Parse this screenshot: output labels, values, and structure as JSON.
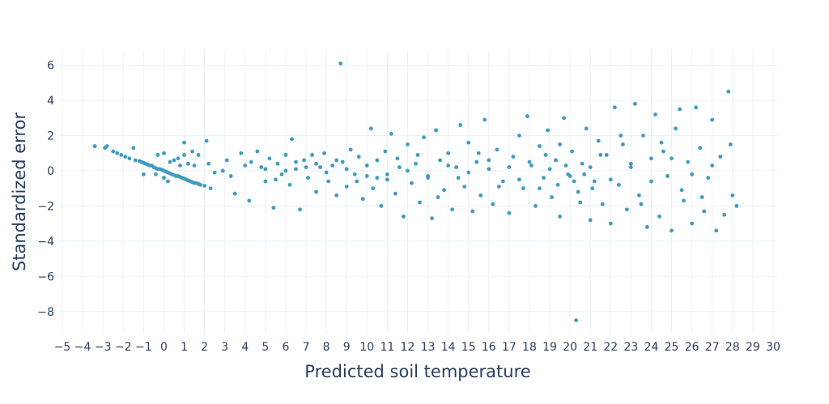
{
  "chart_data": {
    "type": "scatter",
    "title": "",
    "xlabel": "Predicted soil temperature",
    "ylabel": "Standardized error",
    "xlim": [
      -5.2,
      30.2
    ],
    "ylim": [
      -9.3,
      6.9
    ],
    "xticks": [
      -5,
      -4,
      -3,
      -2,
      -1,
      0,
      1,
      2,
      3,
      4,
      5,
      6,
      7,
      8,
      9,
      10,
      11,
      12,
      13,
      14,
      15,
      16,
      17,
      18,
      19,
      20,
      21,
      22,
      23,
      24,
      25,
      26,
      27,
      28,
      29,
      30
    ],
    "yticks": [
      -8,
      -6,
      -4,
      -2,
      0,
      2,
      4,
      6
    ],
    "grid": true,
    "marker_color": "#3f9bbf",
    "series": [
      {
        "name": "points",
        "points": [
          [
            -3.4,
            1.4
          ],
          [
            -2.9,
            1.3
          ],
          [
            -2.8,
            1.4
          ],
          [
            -2.5,
            1.1
          ],
          [
            -2.3,
            1.0
          ],
          [
            -2.1,
            0.9
          ],
          [
            -1.9,
            0.8
          ],
          [
            -1.7,
            0.7
          ],
          [
            -1.5,
            1.3
          ],
          [
            -1.4,
            0.6
          ],
          [
            -1.2,
            0.55
          ],
          [
            -1.1,
            0.5
          ],
          [
            -1.0,
            0.45
          ],
          [
            -0.9,
            0.4
          ],
          [
            -0.8,
            0.35
          ],
          [
            -0.7,
            0.3
          ],
          [
            -0.6,
            0.3
          ],
          [
            -0.5,
            0.2
          ],
          [
            -0.4,
            0.15
          ],
          [
            -0.3,
            0.1
          ],
          [
            -0.2,
            0.1
          ],
          [
            -0.1,
            0.05
          ],
          [
            0,
            0
          ],
          [
            0.1,
            -0.05
          ],
          [
            0.2,
            -0.1
          ],
          [
            0.3,
            -0.15
          ],
          [
            0.4,
            -0.2
          ],
          [
            0.5,
            -0.25
          ],
          [
            0.6,
            -0.3
          ],
          [
            0.7,
            -0.3
          ],
          [
            0.8,
            -0.35
          ],
          [
            0.9,
            -0.4
          ],
          [
            1.0,
            -0.45
          ],
          [
            1.1,
            -0.5
          ],
          [
            1.2,
            -0.55
          ],
          [
            1.3,
            -0.6
          ],
          [
            1.4,
            -0.65
          ],
          [
            1.5,
            -0.7
          ],
          [
            1.6,
            -0.7
          ],
          [
            1.7,
            -0.75
          ],
          [
            1.8,
            -0.8
          ],
          [
            2.0,
            -0.85
          ],
          [
            -1.0,
            -0.2
          ],
          [
            -0.4,
            -0.2
          ],
          [
            0,
            -0.4
          ],
          [
            0.2,
            -0.6
          ],
          [
            0,
            1.0
          ],
          [
            0.3,
            0.5
          ],
          [
            0.5,
            0.6
          ],
          [
            0.8,
            0.3
          ],
          [
            1.0,
            0.9
          ],
          [
            1.0,
            1.6
          ],
          [
            1.2,
            0.4
          ],
          [
            1.4,
            1.1
          ],
          [
            1.5,
            0.3
          ],
          [
            1.7,
            0.9
          ],
          [
            2.1,
            1.7
          ],
          [
            2.2,
            0.4
          ],
          [
            2.3,
            -1.0
          ],
          [
            2.5,
            -0.1
          ],
          [
            -0.3,
            0.9
          ],
          [
            0.7,
            0.7
          ],
          [
            2.9,
            0
          ],
          [
            3.1,
            0.6
          ],
          [
            3.3,
            -0.3
          ],
          [
            3.5,
            -1.3
          ],
          [
            3.8,
            1.0
          ],
          [
            4.0,
            0.3
          ],
          [
            4.2,
            -1.7
          ],
          [
            4.3,
            0.5
          ],
          [
            4.6,
            1.1
          ],
          [
            4.8,
            0.2
          ],
          [
            5.0,
            -0.6
          ],
          [
            5.2,
            0.7
          ],
          [
            5.4,
            -2.1
          ],
          [
            5.6,
            0.4
          ],
          [
            5.8,
            -0.2
          ],
          [
            6.0,
            0.9
          ],
          [
            6.2,
            -0.8
          ],
          [
            6.3,
            1.8
          ],
          [
            6.5,
            0.1
          ],
          [
            6.7,
            -2.2
          ],
          [
            6.9,
            0.6
          ],
          [
            7.1,
            -0.4
          ],
          [
            7.3,
            0.9
          ],
          [
            7.5,
            -1.2
          ],
          [
            7.7,
            0.2
          ],
          [
            7.9,
            1.0
          ],
          [
            8.1,
            -0.6
          ],
          [
            8.3,
            0.3
          ],
          [
            8.5,
            -1.4
          ],
          [
            8.7,
            6.1
          ],
          [
            8.8,
            0.5
          ],
          [
            9.0,
            -0.9
          ],
          [
            9.2,
            1.2
          ],
          [
            9.4,
            -0.2
          ],
          [
            9.6,
            0.8
          ],
          [
            9.8,
            -1.6
          ],
          [
            10.0,
            0.3
          ],
          [
            10.2,
            2.4
          ],
          [
            10.3,
            -1.0
          ],
          [
            10.5,
            0.6
          ],
          [
            10.7,
            -2.0
          ],
          [
            10.9,
            1.1
          ],
          [
            11.0,
            -0.5
          ],
          [
            11.2,
            2.1
          ],
          [
            11.4,
            -1.3
          ],
          [
            11.6,
            0.2
          ],
          [
            11.8,
            -2.6
          ],
          [
            12.0,
            1.5
          ],
          [
            12.2,
            -0.7
          ],
          [
            12.4,
            0.4
          ],
          [
            12.6,
            -1.8
          ],
          [
            12.8,
            1.9
          ],
          [
            13.0,
            -0.3
          ],
          [
            13.2,
            -2.7
          ],
          [
            13.4,
            2.3
          ],
          [
            13.6,
            0.6
          ],
          [
            13.8,
            -1.1
          ],
          [
            14.0,
            1.0
          ],
          [
            14.2,
            -2.2
          ],
          [
            14.4,
            0.2
          ],
          [
            14.6,
            2.6
          ],
          [
            14.8,
            -0.9
          ],
          [
            15.0,
            1.6
          ],
          [
            15.2,
            -2.3
          ],
          [
            15.4,
            0.5
          ],
          [
            15.6,
            -1.4
          ],
          [
            15.8,
            2.9
          ],
          [
            16.0,
            0.1
          ],
          [
            16.2,
            -1.9
          ],
          [
            16.4,
            1.2
          ],
          [
            16.7,
            -0.6
          ],
          [
            17.0,
            -2.4
          ],
          [
            17.2,
            0.8
          ],
          [
            17.5,
            2.0
          ],
          [
            17.7,
            -1.0
          ],
          [
            17.9,
            3.1
          ],
          [
            18.1,
            0.3
          ],
          [
            18.3,
            -2.0
          ],
          [
            18.5,
            1.4
          ],
          [
            18.7,
            -0.4
          ],
          [
            18.9,
            2.3
          ],
          [
            19.1,
            -1.5
          ],
          [
            19.3,
            0.6
          ],
          [
            19.5,
            -2.6
          ],
          [
            19.7,
            3.0
          ],
          [
            19.9,
            -0.2
          ],
          [
            20.1,
            1.1
          ],
          [
            20.3,
            -8.5
          ],
          [
            20.4,
            -1.2
          ],
          [
            20.6,
            0.4
          ],
          [
            20.8,
            2.4
          ],
          [
            21.0,
            -2.8
          ],
          [
            21.2,
            -0.6
          ],
          [
            21.4,
            1.7
          ],
          [
            21.6,
            -1.9
          ],
          [
            21.8,
            0.9
          ],
          [
            22.0,
            -3.0
          ],
          [
            22.2,
            3.6
          ],
          [
            22.4,
            -0.8
          ],
          [
            22.6,
            1.5
          ],
          [
            22.8,
            -2.2
          ],
          [
            23.0,
            0.2
          ],
          [
            23.2,
            3.8
          ],
          [
            23.4,
            -1.4
          ],
          [
            23.6,
            2.0
          ],
          [
            23.8,
            -3.2
          ],
          [
            24.0,
            0.7
          ],
          [
            24.2,
            3.2
          ],
          [
            24.4,
            -2.6
          ],
          [
            24.6,
            1.1
          ],
          [
            24.8,
            -0.3
          ],
          [
            25.0,
            -3.4
          ],
          [
            25.2,
            2.4
          ],
          [
            25.4,
            3.5
          ],
          [
            25.6,
            -1.7
          ],
          [
            25.8,
            0.5
          ],
          [
            26.0,
            -3.0
          ],
          [
            26.2,
            3.6
          ],
          [
            26.4,
            1.3
          ],
          [
            26.6,
            -2.3
          ],
          [
            26.8,
            -0.4
          ],
          [
            27.0,
            2.9
          ],
          [
            27.2,
            -3.4
          ],
          [
            27.4,
            0.8
          ],
          [
            27.6,
            -2.5
          ],
          [
            27.8,
            4.5
          ],
          [
            27.9,
            1.5
          ],
          [
            28.0,
            -1.4
          ],
          [
            28.2,
            -2.0
          ],
          [
            5,
            0.1
          ],
          [
            6,
            0
          ],
          [
            7,
            0.2
          ],
          [
            8,
            -0.1
          ],
          [
            9,
            0.1
          ],
          [
            10,
            -0.3
          ],
          [
            11,
            -0.2
          ],
          [
            12,
            0
          ],
          [
            13,
            -0.4
          ],
          [
            14,
            0.3
          ],
          [
            15,
            -0.1
          ],
          [
            16,
            0.6
          ],
          [
            17,
            0.2
          ],
          [
            18,
            0.5
          ],
          [
            19,
            0.1
          ],
          [
            20,
            -0.3
          ],
          [
            21,
            0.2
          ],
          [
            22,
            -0.5
          ],
          [
            23,
            0.4
          ],
          [
            24,
            -0.6
          ],
          [
            25,
            0.7
          ],
          [
            26,
            -0.2
          ],
          [
            27,
            0.3
          ],
          [
            5.5,
            -0.5
          ],
          [
            6.5,
            0.5
          ],
          [
            7.5,
            0.4
          ],
          [
            8.5,
            0.6
          ],
          [
            9.5,
            -0.6
          ],
          [
            10.5,
            -0.4
          ],
          [
            11.5,
            0.7
          ],
          [
            12.5,
            0.9
          ],
          [
            13.5,
            -1.5
          ],
          [
            14.5,
            -0.4
          ],
          [
            15.5,
            1.0
          ],
          [
            16.5,
            -0.9
          ],
          [
            17.5,
            -0.5
          ],
          [
            18.5,
            -1.0
          ],
          [
            19.5,
            1.5
          ],
          [
            20.5,
            -1.8
          ],
          [
            21.5,
            0.9
          ],
          [
            22.5,
            2.0
          ],
          [
            23.5,
            -1.9
          ],
          [
            24.5,
            1.6
          ],
          [
            25.5,
            -1.1
          ],
          [
            26.5,
            -1.5
          ],
          [
            19.8,
            0.3
          ],
          [
            20.2,
            -0.6
          ],
          [
            20.7,
            -0.2
          ],
          [
            19.4,
            -0.8
          ],
          [
            21.1,
            -1.0
          ],
          [
            18.8,
            0.9
          ]
        ]
      }
    ]
  }
}
